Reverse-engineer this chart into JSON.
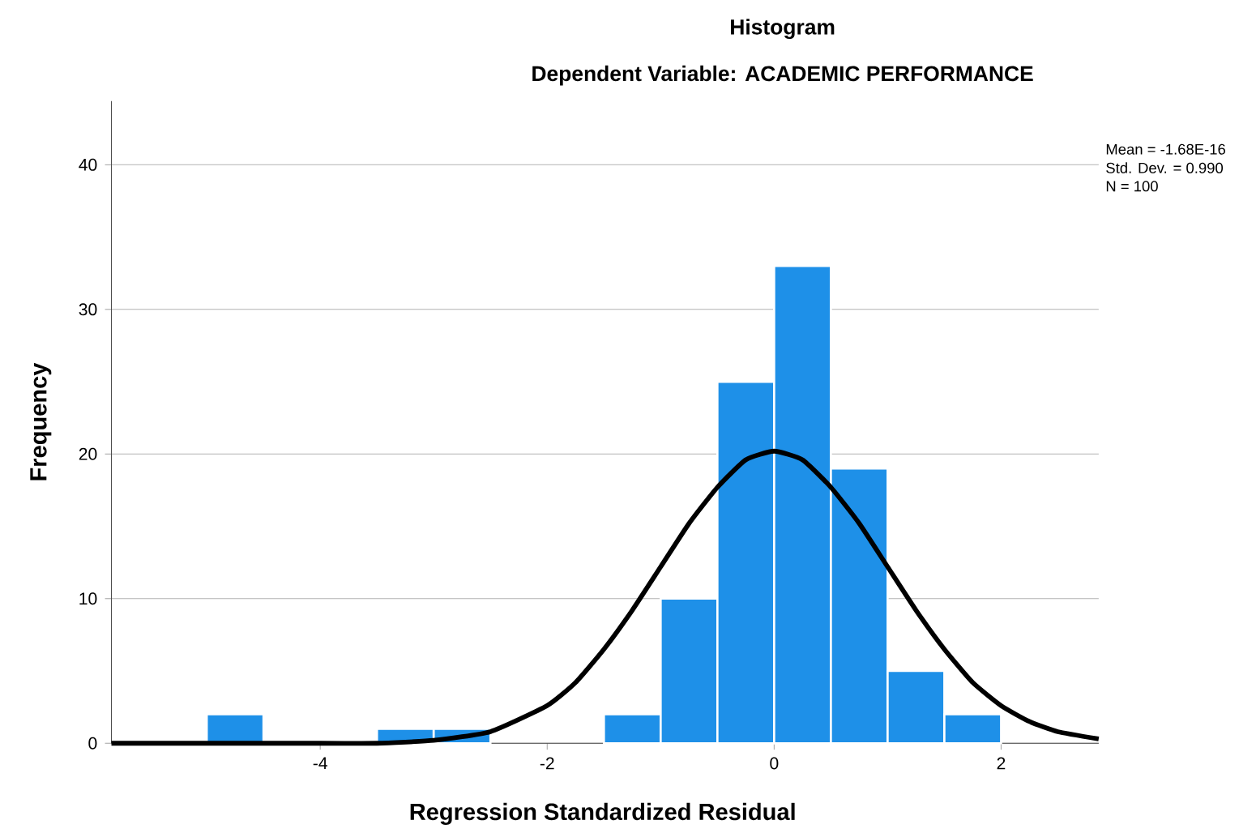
{
  "chart_data": {
    "type": "histogram",
    "title": "Histogram",
    "subtitle": "Dependent Variable: ACADEMIC PERFORMANCE",
    "xlabel": "Regression Standardized Residual",
    "ylabel": "Frequency",
    "annotations": [
      "Mean = -1.68E-16",
      "Std. Dev. = 0.990",
      "N = 100"
    ],
    "series": [
      {
        "color": "#1e90e8",
        "bins": [
          -5,
          -4.5,
          -4,
          -3.5,
          -3,
          -2.5,
          -2,
          -1.5,
          -1,
          -0.5,
          0,
          0.5,
          1,
          1.5,
          2
        ],
        "values": [
          2,
          0,
          0,
          1,
          1,
          0,
          0,
          2,
          10,
          25,
          33,
          19,
          5,
          2
        ]
      },
      {
        "type": "line",
        "color": "#000000",
        "x": [
          -5.84,
          -4,
          -3.5,
          -3,
          -2.5,
          -2,
          -1.75,
          -1.5,
          -1.25,
          -1,
          -0.75,
          -0.5,
          -0.25,
          0,
          0.25,
          0.5,
          0.75,
          1,
          1.25,
          1.5,
          1.75,
          2,
          2.25,
          2.5,
          2.86
        ],
        "values": [
          0,
          0,
          0,
          0.2,
          0.8,
          2.6,
          4.2,
          6.5,
          9.2,
          12.2,
          15.2,
          17.7,
          19.6,
          20.2,
          19.6,
          17.7,
          15.2,
          12.2,
          9.2,
          6.5,
          4.2,
          2.6,
          1.5,
          0.8,
          0.3
        ]
      }
    ],
    "xlim": [
      -5.84,
      2.86
    ],
    "ylim": [
      0,
      44.4
    ],
    "xticks": [
      -4,
      -2,
      0,
      2
    ],
    "yticks": [
      0,
      10,
      20,
      30,
      40
    ],
    "grid": "y"
  }
}
